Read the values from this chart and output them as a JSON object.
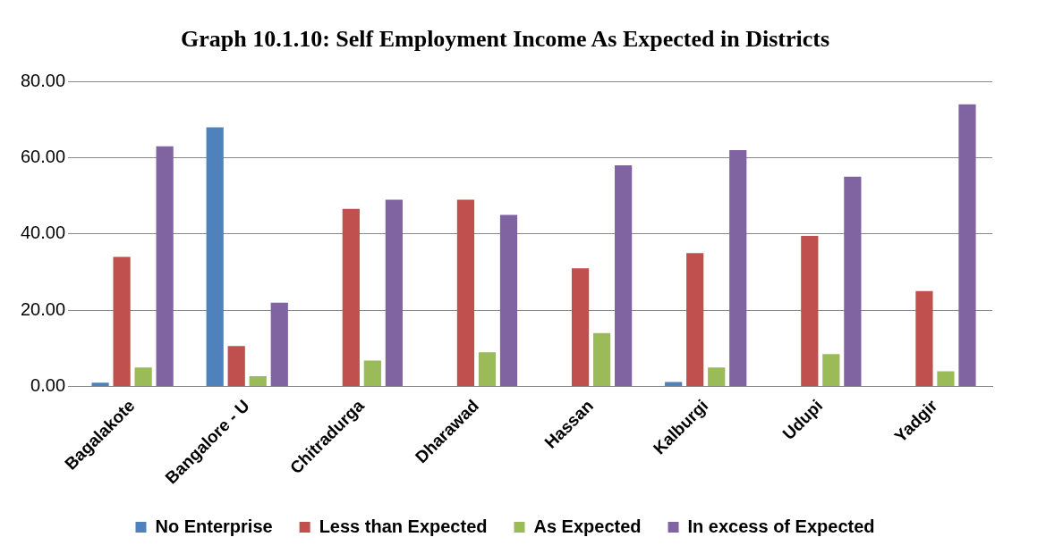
{
  "chart_data": {
    "type": "bar",
    "title": "Graph 10.1.10: Self Employment Income As Expected in Districts",
    "categories": [
      "Bagalakote",
      "Bangalore - U",
      "Chitradurga",
      "Dharawad",
      "Hassan",
      "Kalburgi",
      "Udupi",
      "Yadgir"
    ],
    "series": [
      {
        "name": "No Enterprise",
        "color": "#4f81bd",
        "values": [
          1,
          68,
          0,
          0,
          0,
          1.2,
          0,
          0
        ]
      },
      {
        "name": "Less than Expected",
        "color": "#c0504d",
        "values": [
          34,
          10.6,
          46.6,
          49,
          31,
          35,
          39.5,
          25
        ]
      },
      {
        "name": "As Expected",
        "color": "#9bbb59",
        "values": [
          5,
          2.7,
          6.8,
          9,
          14,
          5,
          8.5,
          4
        ]
      },
      {
        "name": "In excess of Expected",
        "color": "#8064a2",
        "values": [
          63,
          22,
          49,
          45,
          58,
          62,
          55,
          74
        ]
      }
    ],
    "ylim": [
      0,
      80
    ],
    "yticks": [
      {
        "value": 0,
        "label": "0.00"
      },
      {
        "value": 20,
        "label": "20.00"
      },
      {
        "value": 40,
        "label": "40.00"
      },
      {
        "value": 60,
        "label": "60.00"
      },
      {
        "value": 80,
        "label": "80.00"
      }
    ],
    "grid": "y",
    "legend": "bottom"
  }
}
